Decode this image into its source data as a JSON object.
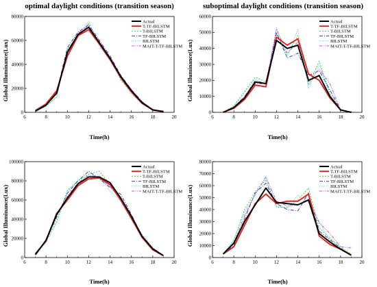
{
  "figure": {
    "colors": {
      "Actual": "#000000",
      "T-TF-BILSTM": "#e8231f",
      "T-BILSTM": "#3ed83e",
      "TF-BILSTM": "#3a3ab8",
      "BILSTM": "#3ad7e6",
      "MAIT-T-TF-BILSTM": "#c94fd6"
    }
  },
  "chart_data": [
    {
      "type": "line",
      "title": "optimal daylight conditions (transition season)",
      "xlabel": "Time(h)",
      "ylabel": "Global Illuminance(Lux)",
      "xlim": [
        6,
        20
      ],
      "ylim": [
        0,
        80000
      ],
      "xticks": [
        "6",
        "8",
        "10",
        "12",
        "14",
        "16",
        "18",
        "20"
      ],
      "yticks": [
        "0",
        "20000",
        "40000",
        "60000",
        "80000"
      ],
      "legend_position": "top-right",
      "grid": false,
      "x": [
        7,
        8,
        9,
        10,
        11,
        12,
        13,
        14,
        15,
        16,
        17,
        18,
        19
      ],
      "series": [
        {
          "name": "Actual",
          "values": [
            1000,
            6000,
            16000,
            50000,
            65000,
            71000,
            58000,
            45000,
            30000,
            18000,
            8000,
            2000,
            500
          ]
        },
        {
          "name": "T-TF-BILSTM",
          "values": [
            1500,
            7000,
            18000,
            47000,
            64000,
            69000,
            57000,
            44000,
            29000,
            17000,
            7500,
            2000,
            800
          ]
        },
        {
          "name": "T-BILSTM",
          "values": [
            1000,
            5000,
            13000,
            53000,
            63000,
            74000,
            57000,
            46000,
            27000,
            17000,
            9000,
            2500,
            500
          ]
        },
        {
          "name": "TF-BILSTM",
          "values": [
            1000,
            6000,
            17000,
            54000,
            67000,
            73000,
            60000,
            47000,
            31000,
            19000,
            9000,
            2000,
            500
          ]
        },
        {
          "name": "BILSTM",
          "values": [
            500,
            5000,
            13000,
            52000,
            64000,
            76000,
            55000,
            43000,
            28000,
            15000,
            8000,
            2000,
            500
          ]
        },
        {
          "name": "MAIT-T-TF-BILSTM",
          "values": [
            1000,
            6000,
            16000,
            51000,
            66000,
            72000,
            59000,
            46000,
            30000,
            19000,
            8500,
            2500,
            500
          ]
        }
      ]
    },
    {
      "type": "line",
      "title": "suboptimal daylight conditions (transition season)",
      "xlabel": "Time(h)",
      "ylabel": "Global Illuminance(Lux)",
      "xlim": [
        6,
        20
      ],
      "ylim": [
        0,
        60000
      ],
      "xticks": [
        "6",
        "8",
        "10",
        "12",
        "14",
        "16",
        "18",
        "20"
      ],
      "yticks": [
        "0",
        "10000",
        "20000",
        "30000",
        "40000",
        "50000",
        "60000"
      ],
      "legend_position": "top-right",
      "grid": false,
      "x": [
        7,
        8,
        9,
        10,
        11,
        12,
        13,
        14,
        15,
        16,
        17,
        18,
        19
      ],
      "series": [
        {
          "name": "Actual",
          "values": [
            0,
            3000,
            9000,
            19000,
            18000,
            45000,
            40000,
            42000,
            20000,
            23000,
            10000,
            1500,
            0
          ]
        },
        {
          "name": "T-TF-BILSTM",
          "values": [
            0,
            2500,
            8000,
            17000,
            16000,
            47000,
            42000,
            46000,
            24000,
            20000,
            9000,
            1500,
            0
          ]
        },
        {
          "name": "T-BILSTM",
          "values": [
            0,
            4000,
            13000,
            22000,
            19000,
            49000,
            36000,
            48000,
            17000,
            32000,
            12000,
            1500,
            0
          ]
        },
        {
          "name": "TF-BILSTM",
          "values": [
            0,
            3000,
            10000,
            18000,
            18000,
            50000,
            34000,
            37000,
            23000,
            26000,
            14000,
            1500,
            0
          ]
        },
        {
          "name": "BILSTM",
          "values": [
            0,
            3500,
            12000,
            21000,
            17000,
            53000,
            34000,
            52000,
            15000,
            30000,
            11000,
            1500,
            0
          ]
        },
        {
          "name": "MAIT-T-TF-BILSTM",
          "values": [
            0,
            3000,
            10000,
            20000,
            18000,
            52000,
            37000,
            44000,
            19000,
            27000,
            18000,
            1500,
            0
          ]
        }
      ]
    },
    {
      "type": "line",
      "title": "",
      "xlabel": "Time(h)",
      "ylabel": "Global Illuminance(Lux)",
      "xlim": [
        6,
        20
      ],
      "ylim": [
        0,
        100000
      ],
      "xticks": [
        "6",
        "8",
        "10",
        "12",
        "14",
        "16",
        "18",
        "20"
      ],
      "yticks": [
        "0",
        "20000",
        "40000",
        "60000",
        "80000",
        "100000"
      ],
      "legend_position": "top-right",
      "grid": false,
      "x": [
        7,
        8,
        9,
        10,
        11,
        12,
        13,
        14,
        15,
        16,
        17,
        18,
        19
      ],
      "series": [
        {
          "name": "Actual",
          "values": [
            3000,
            18000,
            45000,
            62000,
            77000,
            84000,
            84000,
            78000,
            62000,
            43000,
            22000,
            9000,
            2000
          ]
        },
        {
          "name": "T-TF-BILSTM",
          "values": [
            4000,
            17000,
            46000,
            60000,
            75000,
            82000,
            83000,
            76000,
            60000,
            41000,
            21000,
            8000,
            2000
          ]
        },
        {
          "name": "T-BILSTM",
          "values": [
            3000,
            17000,
            38000,
            70000,
            80000,
            87000,
            90000,
            76000,
            63000,
            41000,
            24000,
            10000,
            2000
          ]
        },
        {
          "name": "TF-BILSTM",
          "values": [
            3000,
            18000,
            42000,
            67000,
            80000,
            90000,
            82000,
            73000,
            66000,
            45000,
            22000,
            10000,
            2000
          ]
        },
        {
          "name": "BILSTM",
          "values": [
            2000,
            16000,
            36000,
            69000,
            81000,
            85000,
            86000,
            69000,
            59000,
            39000,
            23000,
            9000,
            1500
          ]
        },
        {
          "name": "MAIT-T-TF-BILSTM",
          "values": [
            3000,
            18000,
            44000,
            64000,
            78000,
            86000,
            84000,
            74000,
            61000,
            43000,
            23000,
            9500,
            2000
          ]
        }
      ]
    },
    {
      "type": "line",
      "title": "",
      "xlabel": "Time(h)",
      "ylabel": "Global Illuminance(Lux)",
      "xlim": [
        6,
        20
      ],
      "ylim": [
        0,
        80000
      ],
      "xticks": [
        "6",
        "8",
        "10",
        "12",
        "14",
        "16",
        "18",
        "20"
      ],
      "yticks": [
        "0",
        "10000",
        "20000",
        "30000",
        "40000",
        "50000",
        "60000",
        "70000",
        "80000"
      ],
      "legend_position": "top-right",
      "grid": false,
      "x": [
        7,
        8,
        9,
        10,
        11,
        12,
        13,
        14,
        15,
        16,
        17,
        18,
        19
      ],
      "series": [
        {
          "name": "Actual",
          "values": [
            3000,
            12000,
            30000,
            44000,
            58000,
            46000,
            45000,
            44000,
            48000,
            20000,
            13000,
            7000,
            2000
          ]
        },
        {
          "name": "T-TF-BILSTM",
          "values": [
            3000,
            9000,
            27000,
            45000,
            53000,
            45000,
            47000,
            47000,
            53000,
            18000,
            11000,
            7000,
            2000
          ]
        },
        {
          "name": "T-BILSTM",
          "values": [
            3000,
            14000,
            40000,
            55000,
            65000,
            42000,
            42000,
            48000,
            58000,
            25000,
            16000,
            9000,
            3000
          ]
        },
        {
          "name": "TF-BILSTM",
          "values": [
            3000,
            10000,
            32000,
            54000,
            62000,
            45000,
            40000,
            39000,
            54000,
            22000,
            15000,
            8000,
            2000
          ]
        },
        {
          "name": "BILSTM",
          "values": [
            3000,
            15000,
            38000,
            52000,
            68000,
            43000,
            41000,
            52000,
            46000,
            30000,
            14000,
            8000,
            1500
          ]
        },
        {
          "name": "MAIT-T-TF-BILSTM",
          "values": [
            3000,
            12000,
            35000,
            53000,
            67000,
            47000,
            43000,
            44000,
            49000,
            29000,
            20000,
            9000,
            8000
          ]
        }
      ]
    }
  ]
}
